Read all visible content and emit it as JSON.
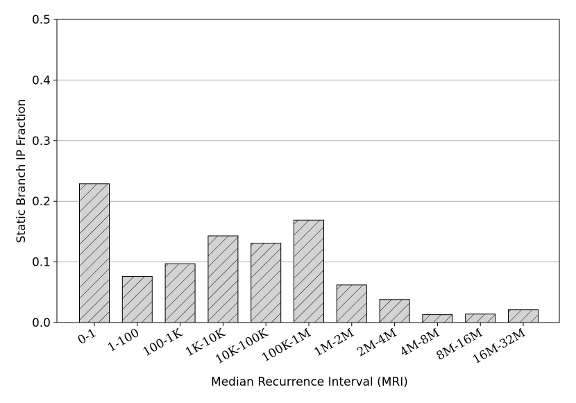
{
  "chart_data": {
    "type": "bar",
    "categories": [
      "0-1",
      "1-100",
      "100-1K",
      "1K-10K",
      "10K-100K",
      "100K-1M",
      "1M-2M",
      "2M-4M",
      "4M-8M",
      "8M-16M",
      "16M-32M"
    ],
    "values": [
      0.229,
      0.076,
      0.097,
      0.143,
      0.131,
      0.169,
      0.062,
      0.038,
      0.013,
      0.014,
      0.021
    ],
    "xlabel": "Median Recurrence Interval (MRI)",
    "ylabel": "Static Branch IP Fraction",
    "ylim": [
      0,
      0.5
    ],
    "yticks": [
      "0.0",
      "0.1",
      "0.2",
      "0.3",
      "0.4",
      "0.5"
    ],
    "grid": "horizontal",
    "bar_color": "#d3d3d3",
    "edge_color": "#000000",
    "hatch": "diagonal"
  }
}
